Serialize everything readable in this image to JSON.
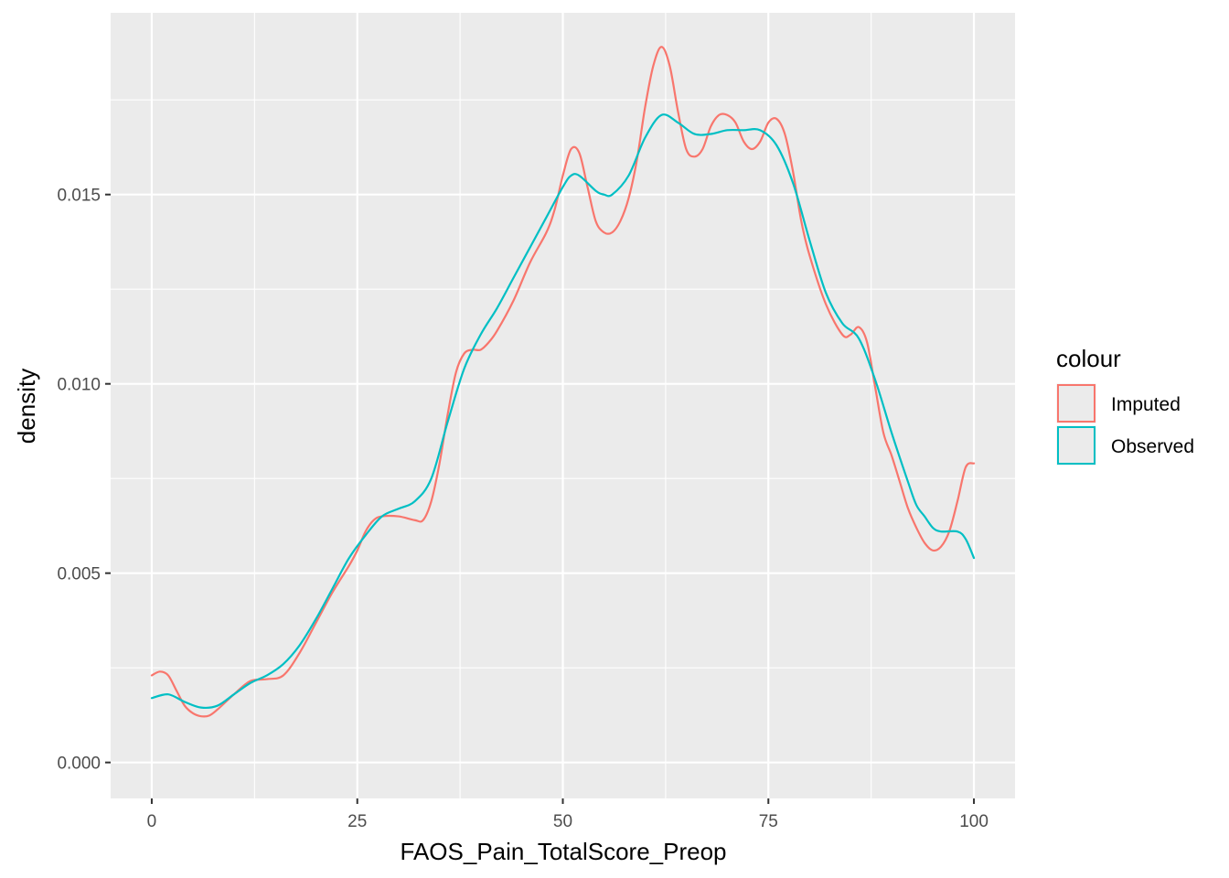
{
  "chart_data": {
    "type": "line",
    "title": "",
    "xlabel": "FAOS_Pain_TotalScore_Preop",
    "ylabel": "density",
    "xlim": [
      -5,
      105
    ],
    "ylim": [
      -0.00095,
      0.0198
    ],
    "x_ticks": [
      0,
      25,
      50,
      75,
      100
    ],
    "x_tick_labels": [
      "0",
      "25",
      "50",
      "75",
      "100"
    ],
    "y_ticks": [
      0,
      0.005,
      0.01,
      0.015
    ],
    "y_tick_labels": [
      "0.000",
      "0.005",
      "0.010",
      "0.015"
    ],
    "grid": true,
    "legend": {
      "title": "colour",
      "position": "right"
    },
    "series": [
      {
        "name": "Imputed",
        "color": "#F8766D",
        "points": [
          [
            0,
            0.0023
          ],
          [
            1,
            0.0024
          ],
          [
            2,
            0.0023
          ],
          [
            3,
            0.0019
          ],
          [
            4,
            0.0015
          ],
          [
            5,
            0.0013
          ],
          [
            6,
            0.00122
          ],
          [
            7,
            0.00124
          ],
          [
            8,
            0.0014
          ],
          [
            10,
            0.0018
          ],
          [
            12,
            0.00215
          ],
          [
            14,
            0.0022
          ],
          [
            16,
            0.0023
          ],
          [
            18,
            0.0029
          ],
          [
            20,
            0.0037
          ],
          [
            22,
            0.0045
          ],
          [
            24,
            0.0052
          ],
          [
            25,
            0.0056
          ],
          [
            26,
            0.0061
          ],
          [
            27,
            0.0064
          ],
          [
            28,
            0.0065
          ],
          [
            30,
            0.0065
          ],
          [
            32,
            0.0064
          ],
          [
            33,
            0.0064
          ],
          [
            34,
            0.0069
          ],
          [
            35,
            0.0079
          ],
          [
            36,
            0.0092
          ],
          [
            37,
            0.0103
          ],
          [
            38,
            0.0108
          ],
          [
            39,
            0.0109
          ],
          [
            40,
            0.0109
          ],
          [
            41,
            0.0111
          ],
          [
            42,
            0.0114
          ],
          [
            44,
            0.0122
          ],
          [
            46,
            0.0132
          ],
          [
            48,
            0.014
          ],
          [
            49,
            0.0146
          ],
          [
            50,
            0.0155
          ],
          [
            51,
            0.0162
          ],
          [
            52,
            0.0161
          ],
          [
            53,
            0.0152
          ],
          [
            54,
            0.0143
          ],
          [
            55,
            0.014
          ],
          [
            56,
            0.014
          ],
          [
            57,
            0.0143
          ],
          [
            58,
            0.0149
          ],
          [
            59,
            0.0159
          ],
          [
            60,
            0.0173
          ],
          [
            61,
            0.0184
          ],
          [
            62,
            0.0189
          ],
          [
            63,
            0.0184
          ],
          [
            64,
            0.0172
          ],
          [
            65,
            0.0162
          ],
          [
            66,
            0.016
          ],
          [
            67,
            0.0162
          ],
          [
            68,
            0.0168
          ],
          [
            69,
            0.0171
          ],
          [
            70,
            0.0171
          ],
          [
            71,
            0.0169
          ],
          [
            72,
            0.0164
          ],
          [
            73,
            0.0162
          ],
          [
            74,
            0.0164
          ],
          [
            75,
            0.0169
          ],
          [
            76,
            0.017
          ],
          [
            77,
            0.0166
          ],
          [
            78,
            0.0156
          ],
          [
            79,
            0.0143
          ],
          [
            80,
            0.0134
          ],
          [
            82,
            0.0121
          ],
          [
            84,
            0.0113
          ],
          [
            85,
            0.0113
          ],
          [
            86,
            0.0115
          ],
          [
            87,
            0.0111
          ],
          [
            88,
            0.0099
          ],
          [
            89,
            0.0087
          ],
          [
            90,
            0.0081
          ],
          [
            91,
            0.0074
          ],
          [
            92,
            0.0067
          ],
          [
            93,
            0.0062
          ],
          [
            94,
            0.0058
          ],
          [
            95,
            0.0056
          ],
          [
            96,
            0.0057
          ],
          [
            97,
            0.0061
          ],
          [
            98,
            0.0069
          ],
          [
            99,
            0.0078
          ],
          [
            100,
            0.0079
          ]
        ]
      },
      {
        "name": "Observed",
        "color": "#00BFC4",
        "points": [
          [
            0,
            0.0017
          ],
          [
            2,
            0.0018
          ],
          [
            4,
            0.0016
          ],
          [
            6,
            0.00145
          ],
          [
            8,
            0.0015
          ],
          [
            10,
            0.0018
          ],
          [
            12,
            0.0021
          ],
          [
            14,
            0.0023
          ],
          [
            16,
            0.0026
          ],
          [
            18,
            0.0031
          ],
          [
            20,
            0.0038
          ],
          [
            22,
            0.0046
          ],
          [
            24,
            0.0054
          ],
          [
            26,
            0.006
          ],
          [
            28,
            0.0065
          ],
          [
            30,
            0.0067
          ],
          [
            32,
            0.0069
          ],
          [
            34,
            0.0075
          ],
          [
            36,
            0.009
          ],
          [
            38,
            0.0104
          ],
          [
            40,
            0.0113
          ],
          [
            42,
            0.012
          ],
          [
            44,
            0.0128
          ],
          [
            46,
            0.0136
          ],
          [
            48,
            0.0144
          ],
          [
            50,
            0.0152
          ],
          [
            51,
            0.0155
          ],
          [
            52,
            0.0155
          ],
          [
            54,
            0.0151
          ],
          [
            55,
            0.015
          ],
          [
            56,
            0.015
          ],
          [
            58,
            0.0155
          ],
          [
            60,
            0.0165
          ],
          [
            62,
            0.0171
          ],
          [
            64,
            0.0169
          ],
          [
            66,
            0.0166
          ],
          [
            68,
            0.0166
          ],
          [
            70,
            0.0167
          ],
          [
            72,
            0.0167
          ],
          [
            74,
            0.0167
          ],
          [
            76,
            0.0163
          ],
          [
            78,
            0.0153
          ],
          [
            80,
            0.0138
          ],
          [
            82,
            0.0124
          ],
          [
            84,
            0.0116
          ],
          [
            86,
            0.0112
          ],
          [
            88,
            0.0101
          ],
          [
            90,
            0.0087
          ],
          [
            92,
            0.0074
          ],
          [
            93,
            0.0068
          ],
          [
            94,
            0.0065
          ],
          [
            95,
            0.0062
          ],
          [
            96,
            0.0061
          ],
          [
            98,
            0.0061
          ],
          [
            99,
            0.0059
          ],
          [
            100,
            0.0054
          ]
        ]
      }
    ]
  }
}
